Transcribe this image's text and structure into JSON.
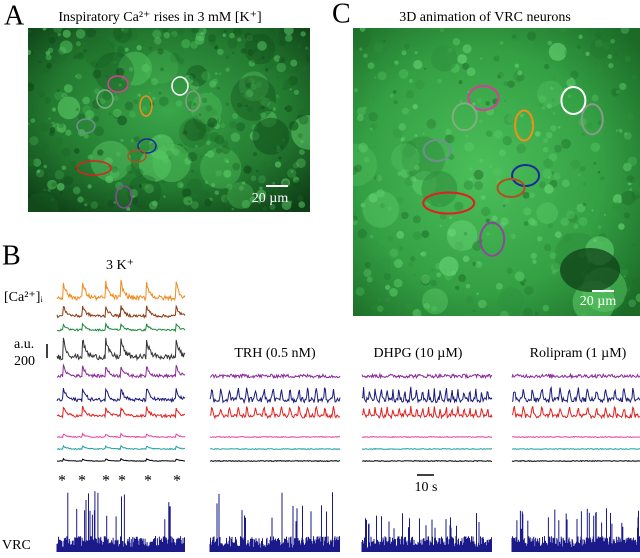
{
  "panel_a": {
    "label": "A",
    "title": "Inspiratory Ca²⁺ rises in 3 mM [K⁺]",
    "scale_bar": "20 µm"
  },
  "panel_c": {
    "label": "C",
    "title": "3D animation of VRC neurons",
    "scale_bar": "20 µm"
  },
  "panel_b": {
    "label": "B",
    "condition": "3 K⁺",
    "y_label": "[Ca²⁺]ᵢ",
    "unit": "a.u.",
    "scale": 200,
    "treatments": [
      "TRH (0.5 nM)",
      "DHPG (10 µM)",
      "Rolipram (1 µM)"
    ],
    "time_bar": "10 s",
    "vrc_label": "VRC",
    "burst_markers": [
      "*",
      "*",
      "*",
      "*",
      "*",
      "*"
    ]
  }
}
